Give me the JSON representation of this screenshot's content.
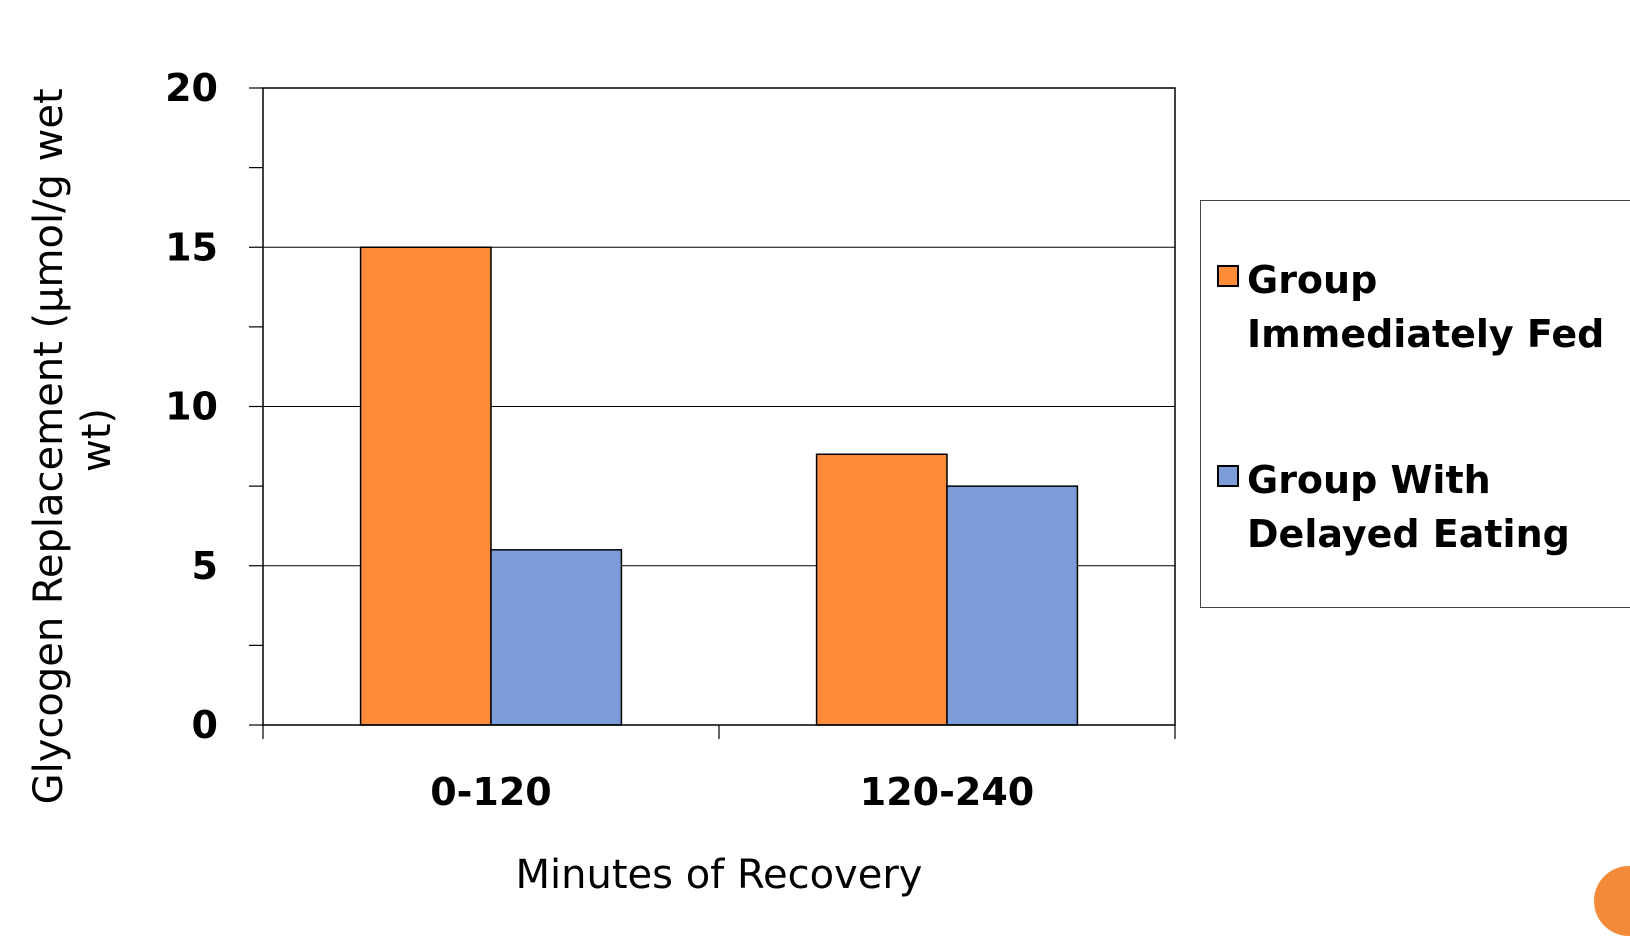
{
  "chart_data": {
    "type": "bar",
    "categories": [
      "0-120",
      "120-240"
    ],
    "series": [
      {
        "name": "Group Immediately Fed",
        "values": [
          15,
          8.5
        ],
        "color": "#ff8c3a"
      },
      {
        "name": "Group With Delayed Eating",
        "values": [
          5.5,
          7.5
        ],
        "color": "#7b9cd8"
      }
    ],
    "xlabel": "Minutes of Recovery",
    "ylabel": "Glycogen Replacement (µmol/g wet wt)",
    "ylabel_lines": [
      "Glycogen Replacement (µmol/g wet",
      "wt)"
    ],
    "ylim": [
      0,
      20
    ],
    "yticks": [
      0,
      5,
      10,
      15,
      20
    ],
    "grid": true,
    "legend_position": "right"
  },
  "colors": {
    "accent_circle": "#f28a3a"
  }
}
